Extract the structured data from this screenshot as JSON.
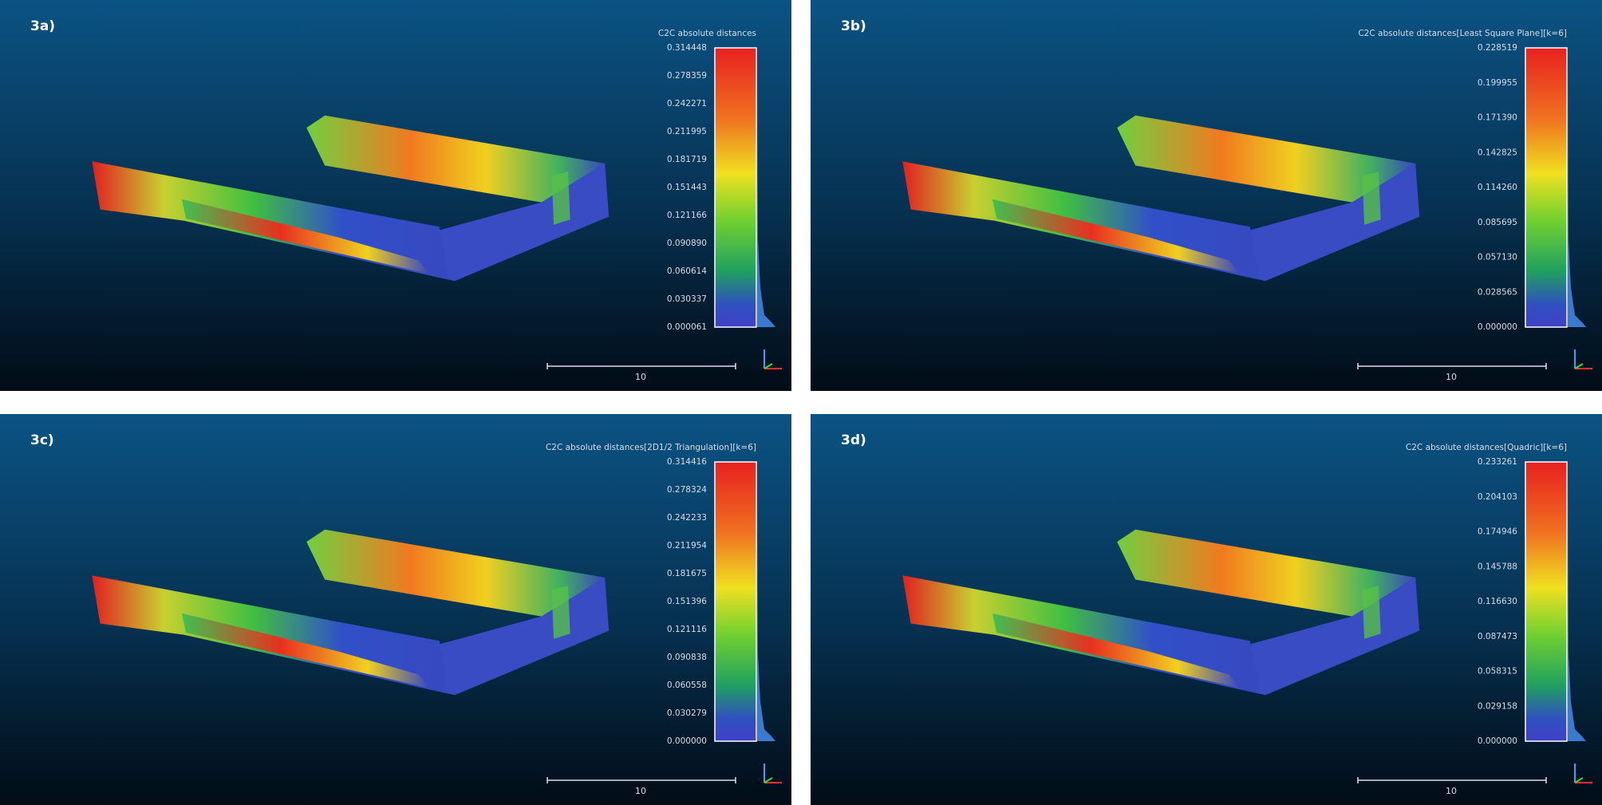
{
  "panels": [
    {
      "label": "3a)",
      "scale_title": "C2C absolute distances",
      "scale_ticks": [
        "0.314448",
        "0.278359",
        "0.242271",
        "0.211995",
        "0.181719",
        "0.151443",
        "0.121166",
        "0.090890",
        "0.060614",
        "0.030337",
        "0.000061"
      ],
      "scale_bar_label": "10"
    },
    {
      "label": "3b)",
      "scale_title": "C2C absolute distances[Least Square Plane][k=6]",
      "scale_ticks": [
        "0.228519",
        "0.199955",
        "0.171390",
        "0.142825",
        "0.114260",
        "0.085695",
        "0.057130",
        "0.028565",
        "0.000000"
      ],
      "scale_bar_label": "10"
    },
    {
      "label": "3c)",
      "scale_title": "C2C absolute distances[2D1/2 Triangulation][k=6]",
      "scale_ticks": [
        "0.314416",
        "0.278324",
        "0.242233",
        "0.211954",
        "0.181675",
        "0.151396",
        "0.121116",
        "0.090838",
        "0.060558",
        "0.030279",
        "0.000000"
      ],
      "scale_bar_label": "10"
    },
    {
      "label": "3d)",
      "scale_title": "C2C absolute distances[Quadric][k=6]",
      "scale_ticks": [
        "0.233261",
        "0.204103",
        "0.174946",
        "0.145788",
        "0.116630",
        "0.087473",
        "0.058315",
        "0.029158",
        "0.000000"
      ],
      "scale_bar_label": "10"
    }
  ]
}
